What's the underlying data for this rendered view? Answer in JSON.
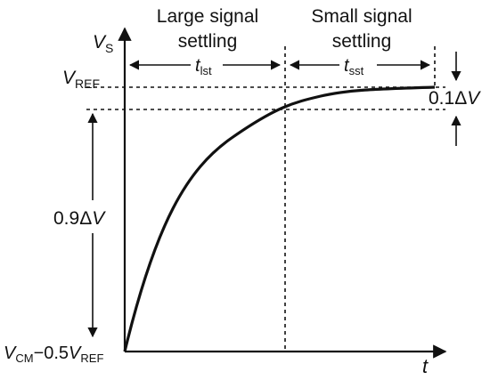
{
  "header": {
    "large_line1": "Large signal",
    "large_line2": "settling",
    "small_line1": "Small signal",
    "small_line2": "settling"
  },
  "labels": {
    "vs_main": "V",
    "vs_sub": "S",
    "vref_main": "V",
    "vref_sub": "REF",
    "tlst_main": "t",
    "tlst_sub": "lst",
    "tsst_main": "t",
    "tsst_sub": "sst",
    "tenth_dv_num": "0.1",
    "tenth_dv_delta": "Δ",
    "tenth_dv_v": "V",
    "ninetenths_dv_num": "0.9",
    "ninetenths_dv_delta": "Δ",
    "ninetenths_dv_v": "V",
    "vcm_main": "V",
    "vcm_sub": "CM",
    "vcm_minus": "−0.5",
    "vcm_vref_main": "V",
    "vcm_vref_sub": "REF",
    "t_axis": "t"
  },
  "colors": {
    "ink": "#111111",
    "background": "#ffffff"
  }
}
